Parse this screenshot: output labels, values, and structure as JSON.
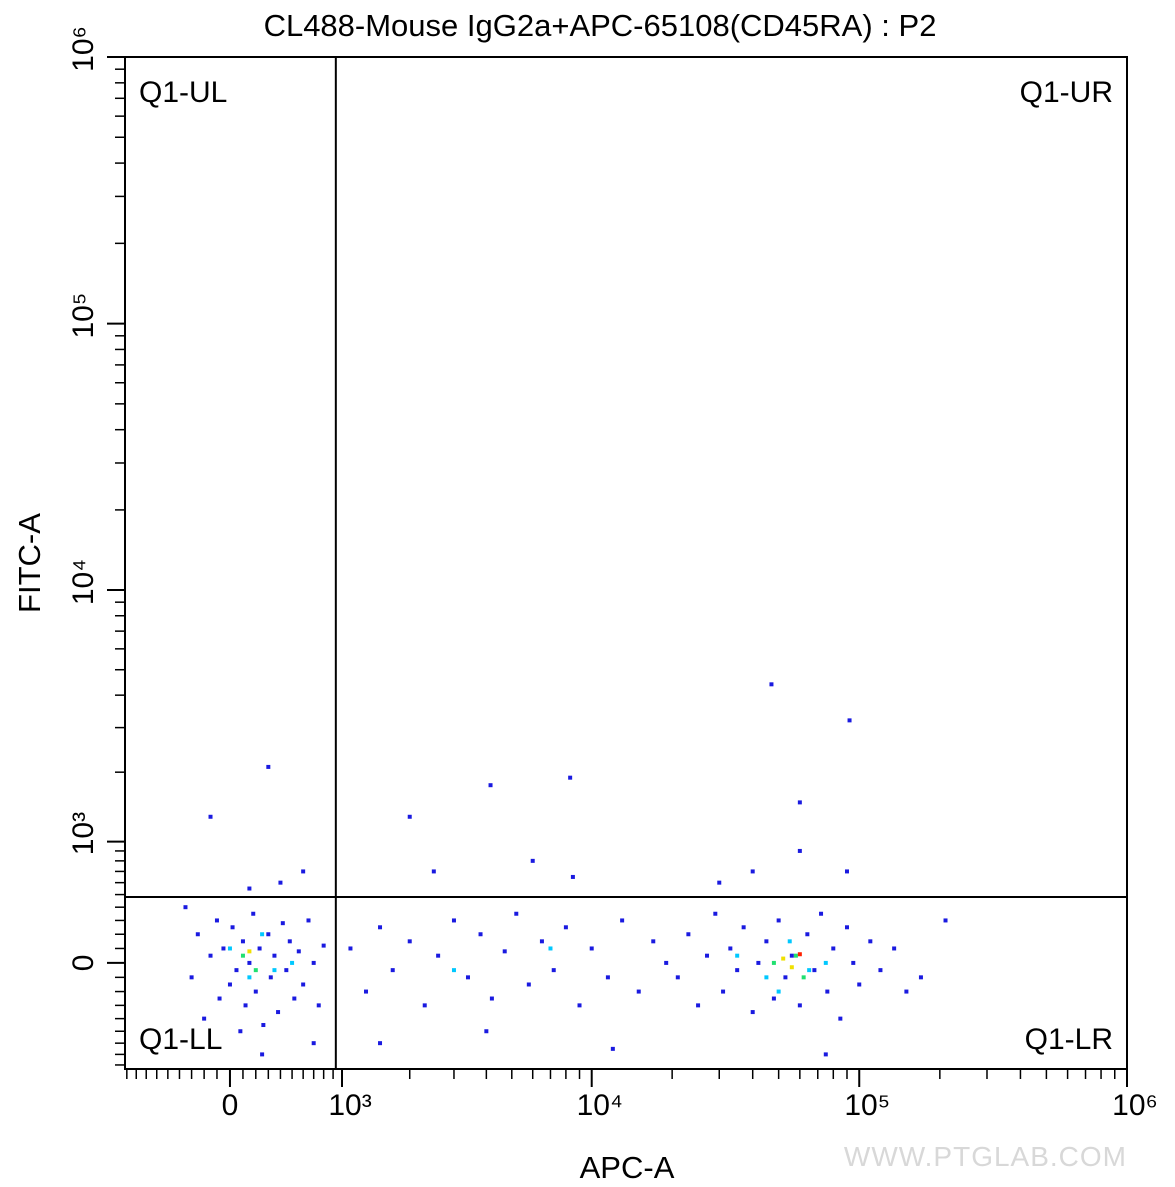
{
  "chart_data": {
    "type": "scatter",
    "title": "CL488-Mouse IgG2a+APC-65108(CD45RA) : P2",
    "x_label": "APC-A",
    "y_label": "FITC-A",
    "scale": "biexponential",
    "xlim": [
      -920,
      1000000
    ],
    "ylim": [
      -840,
      1000000
    ],
    "xticks": [
      0,
      {
        "value": 1000,
        "label": "10³"
      },
      {
        "value": 10000,
        "label": "10⁴"
      },
      {
        "value": 100000,
        "label": "10⁵"
      },
      {
        "value": 1000000,
        "label": "10⁶"
      }
    ],
    "yticks": [
      0,
      {
        "value": 1000,
        "label": "10³"
      },
      {
        "value": 10000,
        "label": "10⁴"
      },
      {
        "value": 100000,
        "label": "10⁵"
      },
      {
        "value": 1000000,
        "label": "10⁶"
      }
    ],
    "minor_ticks": [
      -900,
      -800,
      -700,
      -600,
      -500,
      -400,
      -300,
      -200,
      -100,
      100,
      200,
      300,
      400,
      500,
      600,
      700,
      800,
      900,
      2000,
      3000,
      4000,
      5000,
      6000,
      7000,
      8000,
      9000,
      20000,
      30000,
      40000,
      50000,
      60000,
      70000,
      80000,
      90000,
      200000,
      300000,
      400000,
      500000,
      600000,
      700000,
      800000,
      900000
    ],
    "gates": {
      "x": 930,
      "y": 480
    },
    "quadrant_labels": [
      "Q1-UL",
      "Q1-UR",
      "Q1-LL",
      "Q1-LR"
    ],
    "watermark": "WWW.PTGLAB.COM",
    "groups": [
      {
        "color": "#1a1ae0",
        "x": [
          -300,
          -250,
          -200,
          -150,
          -100,
          -80,
          -50,
          0,
          20,
          50,
          80,
          100,
          120,
          150,
          180,
          200,
          230,
          260,
          300,
          320,
          350,
          380,
          420,
          450,
          480,
          520,
          560,
          600,
          650,
          700,
          750,
          800,
          -350,
          400,
          250,
          600,
          150,
          700,
          1100,
          1300,
          1500,
          1700,
          2000,
          2300,
          2600,
          3000,
          3400,
          3800,
          4200,
          4700,
          5200,
          5800,
          6500,
          7200,
          8000,
          9000,
          10000,
          11500,
          13000,
          15000,
          17000,
          19000,
          2500,
          6000,
          12000,
          4000,
          8500,
          1500,
          21000,
          23000,
          25000,
          27000,
          29000,
          31000,
          33000,
          35000,
          37000,
          40000,
          42000,
          45000,
          48000,
          50000,
          53000,
          56000,
          60000,
          64000,
          68000,
          72000,
          76000,
          80000,
          85000,
          90000,
          95000,
          100000,
          110000,
          120000,
          135000,
          150000,
          40000,
          60000,
          75000,
          30000,
          90000,
          210000,
          170000,
          47000,
          92000,
          300,
          4150,
          8300,
          60000,
          -150,
          2000
        ],
        "y": [
          -100,
          200,
          -400,
          50,
          300,
          -250,
          100,
          -150,
          250,
          -50,
          -500,
          150,
          -300,
          0,
          350,
          -200,
          100,
          -450,
          200,
          -100,
          50,
          -350,
          280,
          -50,
          150,
          -250,
          80,
          -150,
          300,
          0,
          -300,
          120,
          400,
          600,
          -700,
          700,
          550,
          -600,
          100,
          -200,
          250,
          -50,
          150,
          -300,
          50,
          300,
          -100,
          200,
          -250,
          80,
          350,
          -150,
          150,
          -50,
          250,
          -300,
          100,
          -100,
          300,
          -200,
          150,
          0,
          700,
          800,
          -650,
          -500,
          650,
          -600,
          -100,
          200,
          -300,
          50,
          350,
          -200,
          100,
          -50,
          250,
          -350,
          0,
          150,
          -250,
          300,
          -100,
          50,
          -300,
          200,
          -50,
          350,
          -200,
          100,
          -400,
          250,
          0,
          -150,
          150,
          -50,
          100,
          -200,
          700,
          900,
          -700,
          600,
          700,
          300,
          -100,
          4400,
          3200,
          2100,
          1770,
          1900,
          1500,
          1300,
          1300
        ]
      },
      {
        "color": "#00c8ff",
        "x": [
          0,
          150,
          250,
          350,
          500,
          3000,
          7000,
          35000,
          45000,
          55000,
          65000,
          75000,
          50000
        ],
        "y": [
          100,
          -100,
          200,
          -50,
          0,
          -50,
          100,
          50,
          -100,
          150,
          -50,
          0,
          -200
        ]
      },
      {
        "color": "#20e070",
        "x": [
          100,
          200,
          48000,
          58000,
          62000
        ],
        "y": [
          50,
          -50,
          0,
          50,
          -100
        ]
      },
      {
        "color": "#f0e000",
        "x": [
          150,
          52000,
          56000
        ],
        "y": [
          80,
          30,
          -30
        ]
      },
      {
        "color": "#ff2000",
        "x": [
          60000
        ],
        "y": [
          60
        ]
      }
    ]
  }
}
